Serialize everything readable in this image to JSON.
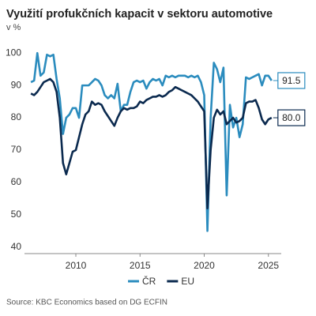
{
  "chart_data": {
    "type": "line",
    "title": "Využití profukčních kapacit v sektoru automotive",
    "subtitle": "v %",
    "source": "Source: KBC Economics based on DG ECFIN",
    "x": [
      2006.5,
      2006.75,
      2007,
      2007.25,
      2007.5,
      2007.75,
      2008,
      2008.25,
      2008.5,
      2008.75,
      2009,
      2009.25,
      2009.5,
      2009.75,
      2010,
      2010.25,
      2010.5,
      2010.75,
      2011,
      2011.25,
      2011.5,
      2011.75,
      2012,
      2012.25,
      2012.5,
      2012.75,
      2013,
      2013.25,
      2013.5,
      2013.75,
      2014,
      2014.25,
      2014.5,
      2014.75,
      2015,
      2015.25,
      2015.5,
      2015.75,
      2016,
      2016.25,
      2016.5,
      2016.75,
      2017,
      2017.25,
      2017.5,
      2017.75,
      2018,
      2018.25,
      2018.5,
      2018.75,
      2019,
      2019.25,
      2019.5,
      2019.75,
      2020,
      2020.25,
      2020.5,
      2020.75,
      2021,
      2021.25,
      2021.5,
      2021.75,
      2022,
      2022.25,
      2022.5,
      2022.75,
      2023,
      2023.25,
      2023.5,
      2023.75,
      2024,
      2024.25,
      2024.5,
      2024.75,
      2025,
      2025.25
    ],
    "series": [
      {
        "name": "ČR",
        "color": "#2b8cbe",
        "values": [
          91,
          91.5,
          100,
          93,
          94,
          99.5,
          99,
          99.5,
          92,
          86,
          75,
          80,
          81,
          83,
          83,
          80,
          90,
          90,
          90,
          91,
          92,
          91.5,
          90,
          87,
          86,
          87,
          86,
          90.5,
          82,
          84,
          84,
          88,
          91,
          91.5,
          91,
          91.5,
          89,
          91,
          92,
          91.5,
          92,
          90,
          93,
          92.5,
          93,
          92.5,
          93,
          93,
          93,
          92.5,
          93,
          92.5,
          93,
          91,
          87,
          45,
          80,
          97,
          95,
          91,
          95.5,
          56,
          84,
          77,
          80,
          74,
          78,
          92.5,
          92,
          92.5,
          93,
          93.5,
          90,
          93,
          93,
          91.5
        ]
      },
      {
        "name": "EU",
        "color": "#0b2a4f",
        "values": [
          87.5,
          87,
          88,
          89.5,
          91,
          91.5,
          92,
          91,
          88,
          80,
          66,
          62.5,
          66,
          69.5,
          70,
          74,
          78,
          81,
          82,
          85,
          84,
          84.5,
          84,
          82,
          80.5,
          79,
          77.5,
          80,
          82,
          83,
          82.5,
          83,
          83,
          83.5,
          85,
          84.5,
          85.5,
          86,
          86.5,
          86.5,
          87,
          86.5,
          87,
          88,
          88.5,
          89.5,
          89,
          88.5,
          88,
          87.5,
          87,
          86,
          85,
          83.5,
          82,
          52,
          70,
          80,
          82.5,
          81,
          82,
          78,
          79,
          80,
          78.5,
          79,
          80,
          84.5,
          85,
          85,
          85.5,
          83,
          79.5,
          78,
          79.5,
          80
        ],
        "value_labels": [
          null,
          null,
          null,
          null,
          null,
          null,
          null,
          null,
          null,
          null,
          null,
          null,
          null,
          null,
          null,
          null,
          null,
          null,
          null,
          null,
          null,
          null,
          null,
          null,
          null,
          null,
          null,
          null,
          null,
          null,
          null,
          null,
          null,
          null,
          null,
          null,
          null,
          null,
          null,
          null,
          null,
          null,
          null,
          null,
          null,
          null,
          null,
          null,
          null,
          null,
          null,
          null,
          null,
          null,
          null,
          null,
          null,
          null,
          null,
          null,
          null,
          null,
          null,
          null,
          null,
          null,
          null,
          null,
          null,
          null,
          null,
          null,
          null,
          null,
          null,
          "80.0"
        ]
      }
    ],
    "xlim": [
      2006,
      2026
    ],
    "xticks": [
      2010,
      2015,
      2020,
      2025
    ],
    "ylim": [
      38,
      102
    ],
    "yticks": [
      40,
      50,
      60,
      70,
      80,
      90,
      100
    ],
    "grid": false,
    "legend": "bottom"
  }
}
